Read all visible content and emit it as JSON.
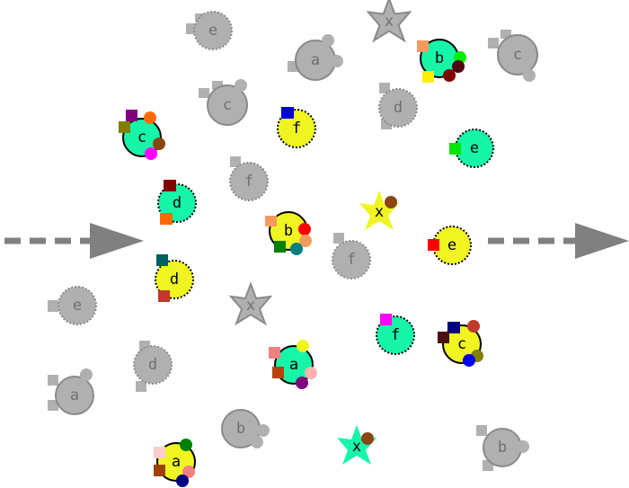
{
  "colors": {
    "gray_fill": "#b0b0b0",
    "gray_edge": "#9a9a9a",
    "gray_text": "#707070",
    "teal": "#17f5a8",
    "yellow": "#f0f522",
    "ink": "#000000",
    "arrow": "#808080"
  },
  "arrows": [
    {
      "name": "left-dashed-arrow"
    },
    {
      "name": "right-dashed-arrow"
    }
  ],
  "tokens": [
    {
      "name": "token-e-top-gray",
      "label": "e",
      "style": "gray"
    },
    {
      "name": "token-x-top-gray",
      "label": "x",
      "style": "gray"
    },
    {
      "name": "token-a-top-gray",
      "label": "a",
      "style": "gray"
    },
    {
      "name": "token-b-top-teal",
      "label": "b",
      "style": "teal"
    },
    {
      "name": "token-c-right-gray",
      "label": "c",
      "style": "gray"
    },
    {
      "name": "token-c-left-gray",
      "label": "c",
      "style": "gray"
    },
    {
      "name": "token-d-mid-gray",
      "label": "d",
      "style": "gray"
    },
    {
      "name": "token-c-left-teal",
      "label": "c",
      "style": "teal"
    },
    {
      "name": "token-f-yellow",
      "label": "f",
      "style": "yellow"
    },
    {
      "name": "token-e-teal",
      "label": "e",
      "style": "teal"
    },
    {
      "name": "token-f-gray-upper",
      "label": "f",
      "style": "gray"
    },
    {
      "name": "token-d-teal",
      "label": "d",
      "style": "teal"
    },
    {
      "name": "token-x-yellow",
      "label": "x",
      "style": "yellow"
    },
    {
      "name": "token-b-yellow",
      "label": "b",
      "style": "yellow"
    },
    {
      "name": "token-e-yellow",
      "label": "e",
      "style": "yellow"
    },
    {
      "name": "token-f-gray-lower",
      "label": "f",
      "style": "gray"
    },
    {
      "name": "token-d-yellow",
      "label": "d",
      "style": "yellow"
    },
    {
      "name": "token-x-mid-gray",
      "label": "x",
      "style": "gray"
    },
    {
      "name": "token-e-left-gray",
      "label": "e",
      "style": "gray"
    },
    {
      "name": "token-f-teal",
      "label": "f",
      "style": "teal"
    },
    {
      "name": "token-c-yellow",
      "label": "c",
      "style": "yellow"
    },
    {
      "name": "token-a-teal",
      "label": "a",
      "style": "teal"
    },
    {
      "name": "token-d-lower-gray",
      "label": "d",
      "style": "gray"
    },
    {
      "name": "token-a-lower-gray",
      "label": "a",
      "style": "gray"
    },
    {
      "name": "token-b-lower-gray",
      "label": "b",
      "style": "gray"
    },
    {
      "name": "token-x-teal",
      "label": "x",
      "style": "teal"
    },
    {
      "name": "token-b-right-gray",
      "label": "b",
      "style": "gray"
    },
    {
      "name": "token-a-yellow",
      "label": "a",
      "style": "yellow"
    }
  ]
}
